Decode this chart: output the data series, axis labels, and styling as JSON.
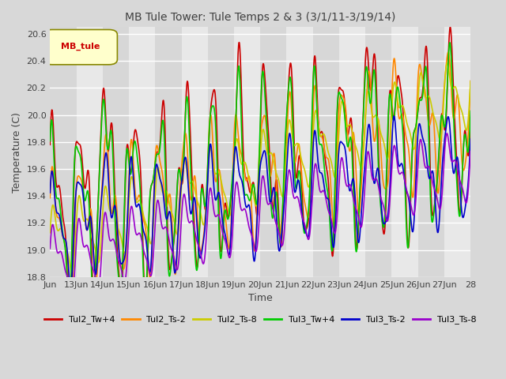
{
  "title": "MB Tule Tower: Tule Temps 2 & 3 (3/1/11-3/19/14)",
  "xlabel": "Time",
  "ylabel": "Temperature (C)",
  "xlim": [
    0,
    16
  ],
  "ylim": [
    18.8,
    20.65
  ],
  "yticks": [
    18.8,
    19.0,
    19.2,
    19.4,
    19.6,
    19.8,
    20.0,
    20.2,
    20.4,
    20.6
  ],
  "xtick_positions": [
    0,
    1,
    2,
    3,
    4,
    5,
    6,
    7,
    8,
    9,
    10,
    11,
    12,
    13,
    14,
    15,
    16
  ],
  "xtick_labels": [
    "Jun",
    "13Jun",
    "14Jun",
    "15Jun",
    "16Jun",
    "17Jun",
    "18Jun",
    "19Jun",
    "20Jun",
    "21Jun",
    "22Jun",
    "23Jun",
    "24Jun",
    "25Jun",
    "26Jun",
    "27Jun",
    "28"
  ],
  "series_colors": [
    "#cc0000",
    "#ff8800",
    "#cccc00",
    "#00cc00",
    "#0000cc",
    "#9900cc"
  ],
  "series_labels": [
    "Tul2_Tw+4",
    "Tul2_Ts-2",
    "Tul2_Ts-8",
    "Tul3_Tw+4",
    "Tul3_Ts-2",
    "Tul3_Ts-8"
  ],
  "legend_text": "MB_tule",
  "legend_text_color": "#cc0000",
  "fig_bg_color": "#d8d8d8",
  "ax_bg_color": "#e8e8e8",
  "band_color": "#cccccc",
  "grid_color": "#ffffff"
}
